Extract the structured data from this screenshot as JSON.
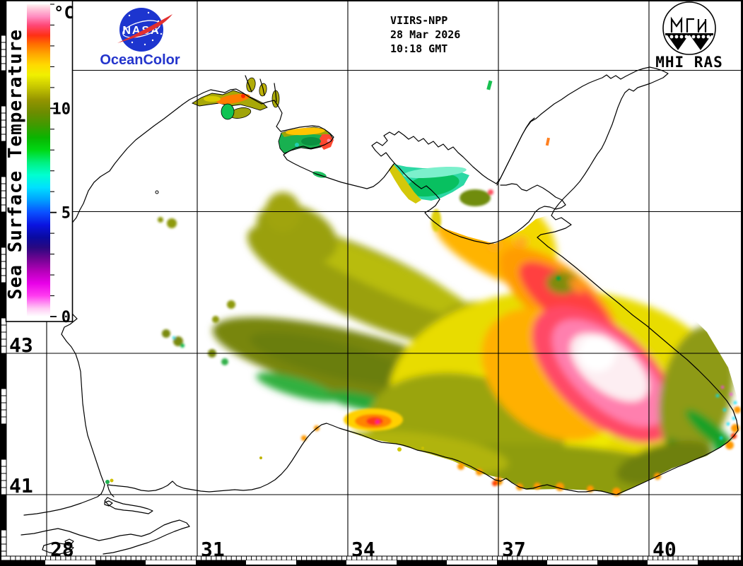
{
  "header": {
    "satellite": "VIIRS-NPP",
    "date": "28 Mar 2026",
    "time": "10:18 GMT"
  },
  "colorbar": {
    "title": "Sea Surface Temperature",
    "unit": "°C",
    "min": 0,
    "max": 15,
    "major_ticks": [
      0,
      5,
      10
    ],
    "tick_labels": [
      "0",
      "5",
      "10"
    ],
    "gradient_stops": [
      {
        "value": 0.0,
        "color": "#ffffff"
      },
      {
        "value": 0.4,
        "color": "#ffc8f4"
      },
      {
        "value": 1.0,
        "color": "#ff3cf0"
      },
      {
        "value": 1.6,
        "color": "#e800e8"
      },
      {
        "value": 2.2,
        "color": "#b400b8"
      },
      {
        "value": 2.8,
        "color": "#6c0490"
      },
      {
        "value": 3.3,
        "color": "#2a0880"
      },
      {
        "value": 3.8,
        "color": "#0a0aa0"
      },
      {
        "value": 4.4,
        "color": "#0a14e0"
      },
      {
        "value": 5.0,
        "color": "#0a50ff"
      },
      {
        "value": 5.6,
        "color": "#00a0ff"
      },
      {
        "value": 6.2,
        "color": "#00e0ff"
      },
      {
        "value": 6.8,
        "color": "#00ffd0"
      },
      {
        "value": 7.4,
        "color": "#00f080"
      },
      {
        "value": 8.0,
        "color": "#00d814"
      },
      {
        "value": 8.6,
        "color": "#0ab400"
      },
      {
        "value": 9.2,
        "color": "#409a00"
      },
      {
        "value": 9.8,
        "color": "#6c8c00"
      },
      {
        "value": 10.4,
        "color": "#949400"
      },
      {
        "value": 11.0,
        "color": "#c4c400"
      },
      {
        "value": 11.6,
        "color": "#f0f000"
      },
      {
        "value": 12.1,
        "color": "#ffd800"
      },
      {
        "value": 12.6,
        "color": "#ffa800"
      },
      {
        "value": 13.1,
        "color": "#ff6c00"
      },
      {
        "value": 13.5,
        "color": "#ff3014"
      },
      {
        "value": 14.0,
        "color": "#ff4878"
      },
      {
        "value": 14.4,
        "color": "#ff8cc0"
      },
      {
        "value": 14.8,
        "color": "#ffccdc"
      },
      {
        "value": 15.0,
        "color": "#fff4f4"
      }
    ]
  },
  "logos": {
    "nasa": {
      "wordmark": "NASA",
      "caption": "OceanColor",
      "disc_color": "#1d35cf",
      "swoosh_color": "#e23030",
      "caption_color": "#2334cc"
    },
    "mhi": {
      "label": "MHI RAS"
    }
  },
  "axes": {
    "lat_labels": [
      "43",
      "41"
    ],
    "lon_labels": [
      "28",
      "31",
      "34",
      "37",
      "40"
    ]
  },
  "map": {
    "sst_palette": {
      "olive": "#9aa008",
      "dark_olive": "#78860a",
      "yellow": "#f0e000",
      "orange": "#ff9c00",
      "red": "#ff4048",
      "pink": "#ff7fae",
      "white_hot": "#fdeef2",
      "green": "#18b050",
      "cyan": "#2cd8a4"
    }
  }
}
